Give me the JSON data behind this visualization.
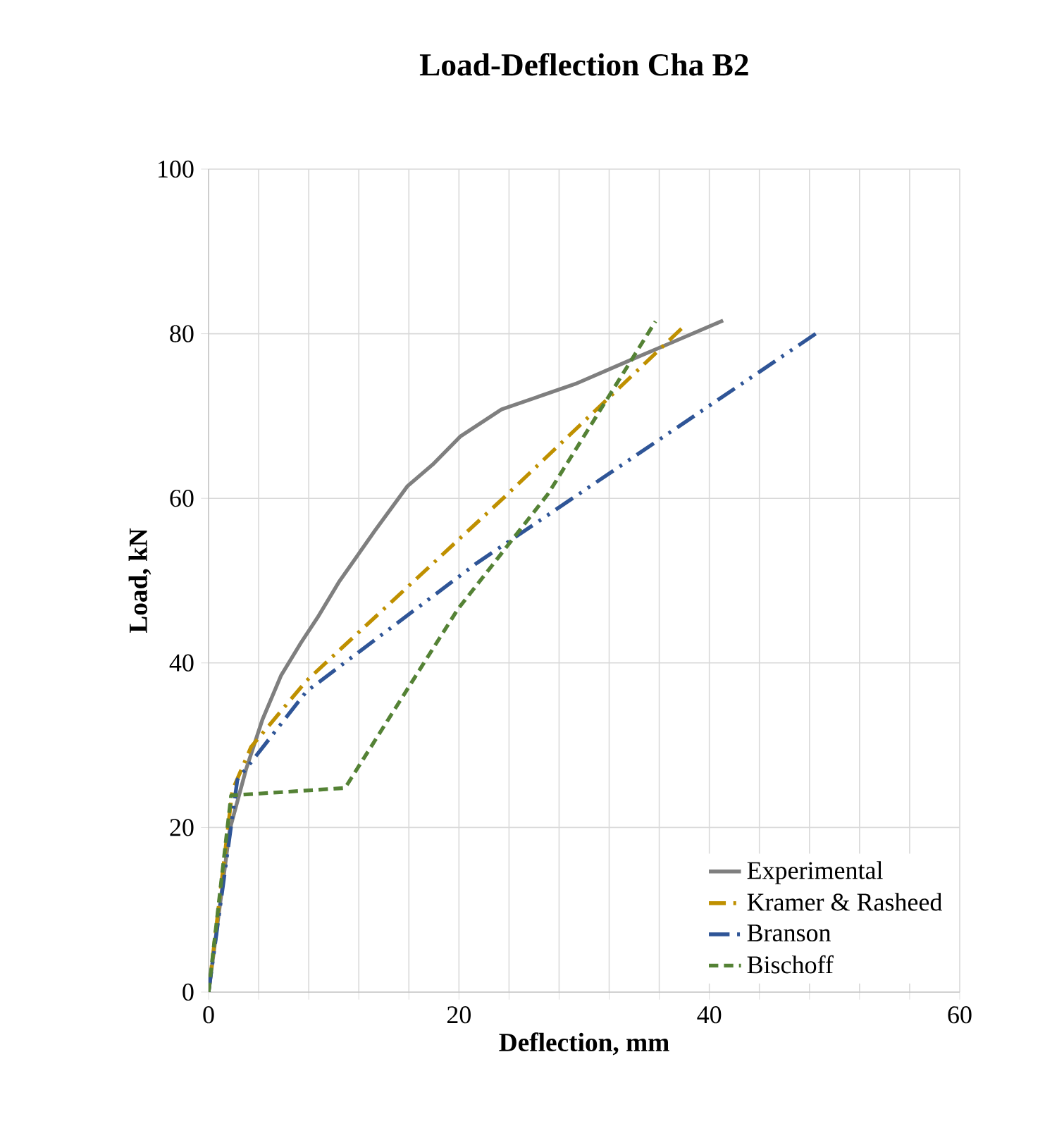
{
  "chart_data": {
    "type": "line",
    "title": "Load-Deflection Cha B2",
    "xlabel": "Deflection, mm",
    "ylabel": "Load, kN",
    "xlim": [
      0,
      60
    ],
    "ylim": [
      0,
      100
    ],
    "xticks": [
      0,
      {
        "value": 4,
        "label": null
      },
      {
        "value": 8,
        "label": null
      },
      {
        "value": 12,
        "label": null
      },
      {
        "value": 16,
        "label": null
      },
      20,
      {
        "value": 24,
        "label": null
      },
      {
        "value": 28,
        "label": null
      },
      {
        "value": 32,
        "label": null
      },
      {
        "value": 36,
        "label": null
      },
      40,
      {
        "value": 44,
        "label": null
      },
      {
        "value": 48,
        "label": null
      },
      {
        "value": 52,
        "label": null
      },
      {
        "value": 56,
        "label": null
      },
      60
    ],
    "yticks": [
      0,
      20,
      40,
      60,
      80,
      100
    ],
    "grid": true,
    "legend": "bottom right",
    "marker": "none",
    "series": [
      {
        "name": "Experimental",
        "color": "#7f7f7f",
        "line_style": "solid",
        "x": [
          0,
          1.7,
          3,
          4.3,
          5.8,
          7.4,
          8.7,
          10.4,
          13.3,
          15.9,
          17.9,
          20.1,
          23.4,
          29.3,
          33.7,
          36.8,
          41.1
        ],
        "values": [
          0,
          19.8,
          27.1,
          33.1,
          38.5,
          42.5,
          45.5,
          49.8,
          56.1,
          61.5,
          64.1,
          67.5,
          70.8,
          73.9,
          76.8,
          78.8,
          81.6
        ]
      },
      {
        "name": "Kramer & Rasheed",
        "color": "#bf9000",
        "line_style": "dashdot",
        "x": [
          0,
          1.9,
          3.4,
          7.8,
          23.6,
          37.9
        ],
        "values": [
          0,
          24.5,
          29.8,
          37.8,
          60.1,
          80.8
        ]
      },
      {
        "name": "Branson",
        "color": "#2f5597",
        "line_style": "dashdotdot",
        "x": [
          0,
          2.3,
          7.8,
          21.4,
          48.5
        ],
        "values": [
          0,
          25.8,
          36.5,
          52.1,
          80.0
        ]
      },
      {
        "name": "Bischoff",
        "color": "#548235",
        "line_style": "dashed",
        "x": [
          0,
          1.8,
          10.9,
          19.9,
          27.1,
          35.7
        ],
        "values": [
          0,
          23.9,
          24.8,
          46.5,
          60.5,
          81.5
        ]
      }
    ]
  }
}
